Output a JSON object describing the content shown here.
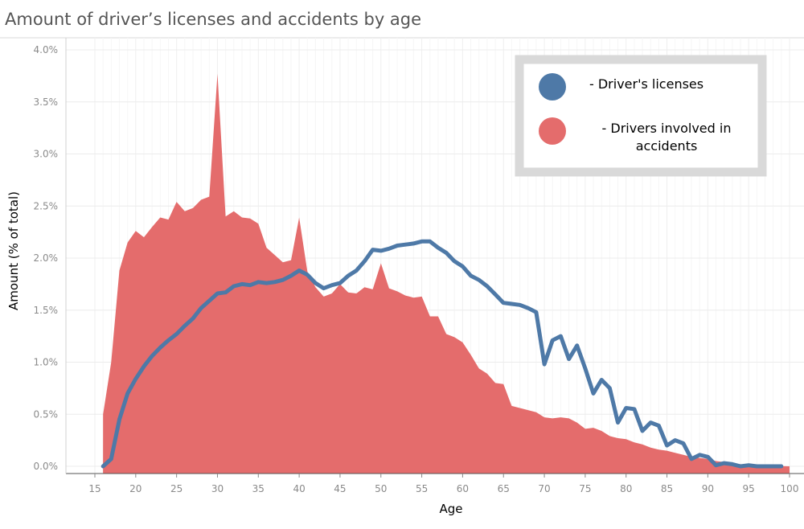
{
  "chart_data": {
    "type": "area",
    "title": "Amount of driver’s licenses and accidents by age",
    "xlabel": "Age",
    "ylabel": "Amount (% of total)",
    "xlim": [
      12,
      101
    ],
    "ylim": [
      0,
      4.0
    ],
    "x_ticks": [
      15,
      20,
      25,
      30,
      35,
      40,
      45,
      50,
      55,
      60,
      65,
      70,
      75,
      80,
      85,
      90,
      95,
      100
    ],
    "x_tick_labels": [
      "15",
      "20",
      "25",
      "30",
      "35",
      "40",
      "45",
      "50",
      "55",
      "60",
      "65",
      "70",
      "75",
      "80",
      "85",
      "90",
      "95",
      "100"
    ],
    "y_ticks": [
      0,
      0.5,
      1.0,
      1.5,
      2.0,
      2.5,
      3.0,
      3.5,
      4.0
    ],
    "y_tick_labels": [
      "0.0%",
      "0.5%",
      "1.0%",
      "1.5%",
      "2.0%",
      "2.5%",
      "3.0%",
      "3.5%",
      "4.0%"
    ],
    "grid": true,
    "legend_position": "top-right",
    "series": [
      {
        "name": "Drivers involved in accidents",
        "legend_label": "- Drivers involved in accidents",
        "render": "area",
        "color": "#e46c6c",
        "x": [
          16,
          17,
          18,
          19,
          20,
          21,
          22,
          23,
          24,
          25,
          26,
          27,
          28,
          29,
          30,
          31,
          32,
          33,
          34,
          35,
          36,
          37,
          38,
          39,
          40,
          41,
          42,
          43,
          44,
          45,
          46,
          47,
          48,
          49,
          50,
          51,
          52,
          53,
          54,
          55,
          56,
          57,
          58,
          59,
          60,
          61,
          62,
          63,
          64,
          65,
          66,
          67,
          68,
          69,
          70,
          71,
          72,
          73,
          74,
          75,
          76,
          77,
          78,
          79,
          80,
          81,
          82,
          83,
          84,
          85,
          86,
          87,
          88,
          89,
          90,
          91,
          92,
          93,
          94,
          95,
          96,
          97,
          98,
          99,
          100
        ],
        "values": [
          0.5,
          1.0,
          1.88,
          2.15,
          2.26,
          2.2,
          2.3,
          2.39,
          2.37,
          2.54,
          2.45,
          2.48,
          2.56,
          2.59,
          3.77,
          2.4,
          2.45,
          2.39,
          2.38,
          2.33,
          2.1,
          2.03,
          1.96,
          1.98,
          2.39,
          1.87,
          1.72,
          1.63,
          1.66,
          1.75,
          1.67,
          1.66,
          1.72,
          1.7,
          1.95,
          1.71,
          1.68,
          1.64,
          1.62,
          1.63,
          1.44,
          1.44,
          1.27,
          1.24,
          1.19,
          1.07,
          0.94,
          0.89,
          0.8,
          0.79,
          0.58,
          0.56,
          0.54,
          0.52,
          0.47,
          0.46,
          0.47,
          0.46,
          0.42,
          0.36,
          0.37,
          0.34,
          0.29,
          0.27,
          0.26,
          0.23,
          0.21,
          0.18,
          0.16,
          0.15,
          0.13,
          0.11,
          0.09,
          0.08,
          0.07,
          0.05,
          0.04,
          0.03,
          0.02,
          0.01,
          0.01,
          0.005,
          0.003,
          0.002,
          0.0
        ]
      },
      {
        "name": "Driver's licenses",
        "legend_label": "- Driver's licenses",
        "render": "line",
        "color": "#4e79a7",
        "x": [
          16,
          17,
          18,
          19,
          20,
          21,
          22,
          23,
          24,
          25,
          26,
          27,
          28,
          29,
          30,
          31,
          32,
          33,
          34,
          35,
          36,
          37,
          38,
          39,
          40,
          41,
          42,
          43,
          44,
          45,
          46,
          47,
          48,
          49,
          50,
          51,
          52,
          53,
          54,
          55,
          56,
          57,
          58,
          59,
          60,
          61,
          62,
          63,
          64,
          65,
          66,
          67,
          68,
          69,
          70,
          71,
          72,
          73,
          74,
          75,
          76,
          77,
          78,
          79,
          80,
          81,
          82,
          83,
          84,
          85,
          86,
          87,
          88,
          89,
          90,
          91,
          92,
          93,
          94,
          95,
          96,
          97,
          98,
          99
        ],
        "values": [
          0.0,
          0.07,
          0.45,
          0.7,
          0.84,
          0.96,
          1.06,
          1.14,
          1.21,
          1.27,
          1.35,
          1.42,
          1.52,
          1.59,
          1.66,
          1.67,
          1.73,
          1.75,
          1.74,
          1.77,
          1.76,
          1.77,
          1.79,
          1.83,
          1.88,
          1.84,
          1.76,
          1.71,
          1.74,
          1.76,
          1.83,
          1.88,
          1.97,
          2.08,
          2.07,
          2.09,
          2.12,
          2.13,
          2.14,
          2.16,
          2.16,
          2.1,
          2.05,
          1.97,
          1.92,
          1.83,
          1.79,
          1.73,
          1.65,
          1.57,
          1.56,
          1.55,
          1.52,
          1.48,
          0.98,
          1.21,
          1.25,
          1.03,
          1.16,
          0.94,
          0.7,
          0.83,
          0.75,
          0.42,
          0.56,
          0.55,
          0.34,
          0.42,
          0.39,
          0.2,
          0.25,
          0.22,
          0.07,
          0.11,
          0.09,
          0.01,
          0.03,
          0.02,
          0.0,
          0.01,
          0.0,
          0.0,
          0.0,
          0.0
        ]
      }
    ]
  }
}
